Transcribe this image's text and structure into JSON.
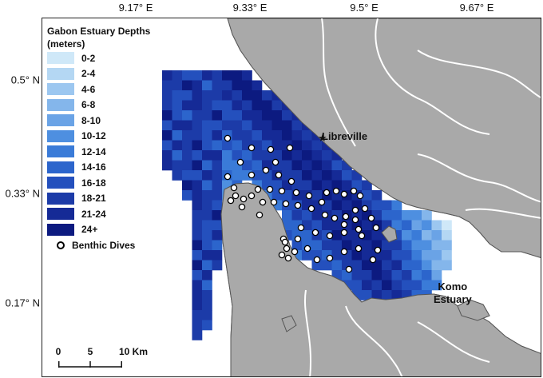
{
  "axes": {
    "longitude_ticks": [
      "9.17° E",
      "9.33° E",
      "9.5° E",
      "9.67° E"
    ],
    "latitude_ticks": [
      "0.5° N",
      "0.33° N",
      "0.17° N"
    ]
  },
  "legend": {
    "title_line1": "Gabon Estuary Depths",
    "title_line2": "(meters)",
    "classes": [
      {
        "label": "0-2",
        "color": "#cfe8f8"
      },
      {
        "label": "2-4",
        "color": "#b4d7f3"
      },
      {
        "label": "4-6",
        "color": "#9cc7f0"
      },
      {
        "label": "6-8",
        "color": "#84b6eb"
      },
      {
        "label": "8-10",
        "color": "#6aa3e6"
      },
      {
        "label": "10-12",
        "color": "#4e8fe0"
      },
      {
        "label": "12-14",
        "color": "#3a7bd8"
      },
      {
        "label": "14-16",
        "color": "#2c65cc"
      },
      {
        "label": "16-18",
        "color": "#2450bd"
      },
      {
        "label": "18-21",
        "color": "#1c3ba8"
      },
      {
        "label": "21-24",
        "color": "#152a96"
      },
      {
        "label": "24+",
        "color": "#0c1a80"
      }
    ],
    "dives_label": "Benthic Dives"
  },
  "places": {
    "libreville": "Libreville",
    "komo_line1": "Komo",
    "komo_line2": "Estuary"
  },
  "scale_bar": {
    "labels": [
      "0",
      "5",
      "10 Km"
    ]
  },
  "colors": {
    "land": "#a9a9a9",
    "land_edge": "#555555",
    "water": "#ffffff",
    "dive_fill": "#ffffff",
    "dive_stroke": "#000000"
  }
}
